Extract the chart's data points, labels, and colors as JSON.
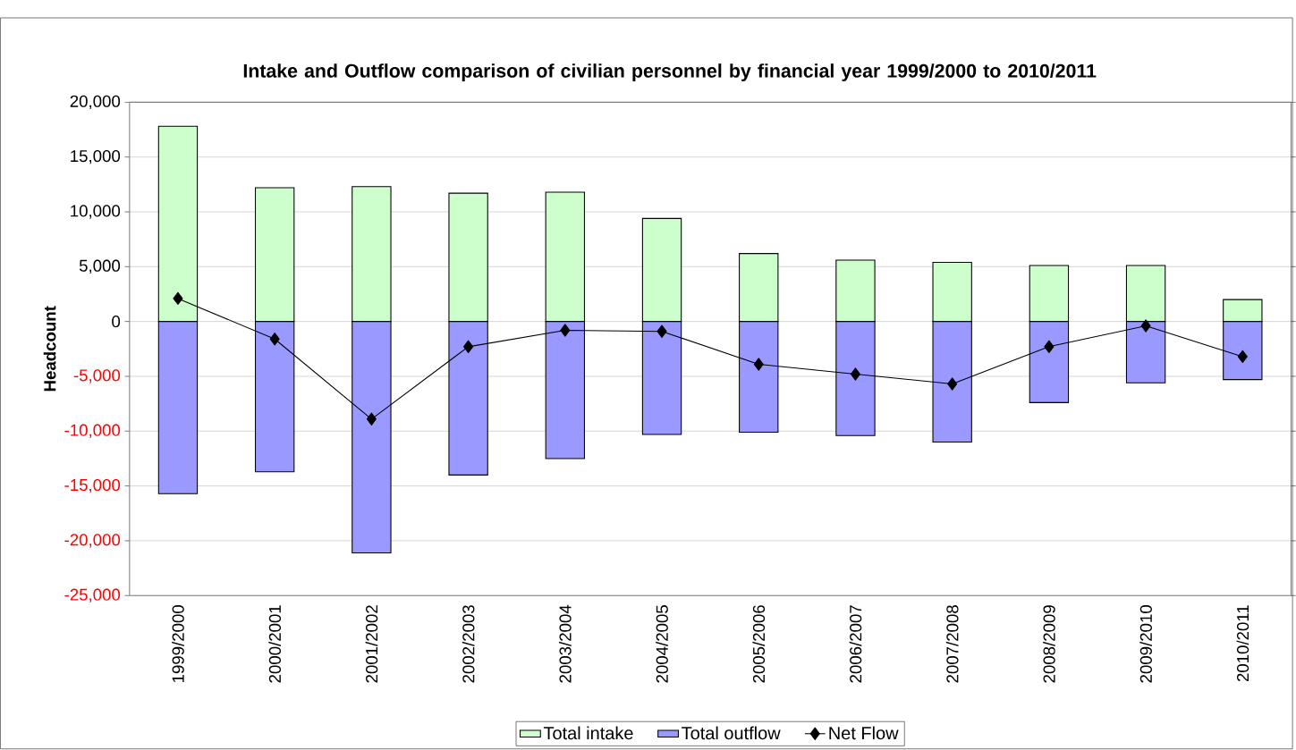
{
  "chart_data": {
    "type": "bar",
    "title": "Intake and Outflow comparison of civilian personnel by financial year 1999/2000 to 2010/2011",
    "ylabel": "Headcount",
    "categories": [
      "1999/2000",
      "2000/2001",
      "2001/2002",
      "2002/2003",
      "2003/2004",
      "2004/2005",
      "2005/2006",
      "2006/2007",
      "2007/2008",
      "2008/2009",
      "2009/2010",
      "2010/2011"
    ],
    "series": [
      {
        "name": "Total intake",
        "color": "#ccffcc",
        "values": [
          17800,
          12200,
          12300,
          11700,
          11800,
          9400,
          6200,
          5600,
          5400,
          5100,
          5100,
          2000
        ]
      },
      {
        "name": "Total outflow",
        "color": "#9999ff",
        "values": [
          -15700,
          -13700,
          -21100,
          -14000,
          -12500,
          -10300,
          -10100,
          -10400,
          -11000,
          -7400,
          -5600,
          -5300
        ]
      },
      {
        "name": "Net Flow",
        "type": "line",
        "color": "#000000",
        "marker": "diamond",
        "values": [
          2100,
          -1600,
          -8900,
          -2300,
          -800,
          -900,
          -3900,
          -4800,
          -5700,
          -2300,
          -400,
          -3200
        ]
      }
    ],
    "stacked": true,
    "ylim": [
      -25000,
      20000
    ],
    "yticks": [
      {
        "value": -25000,
        "label": "-25,000"
      },
      {
        "value": -20000,
        "label": "-20,000"
      },
      {
        "value": -15000,
        "label": "-15,000"
      },
      {
        "value": -10000,
        "label": "-10,000"
      },
      {
        "value": -5000,
        "label": "-5,000"
      },
      0,
      {
        "value": 5000,
        "label": "5,000"
      },
      {
        "value": 10000,
        "label": "10,000"
      },
      {
        "value": 15000,
        "label": "15,000"
      },
      {
        "value": 20000,
        "label": "20,000"
      }
    ],
    "grid": "y",
    "legend": "bottom"
  }
}
